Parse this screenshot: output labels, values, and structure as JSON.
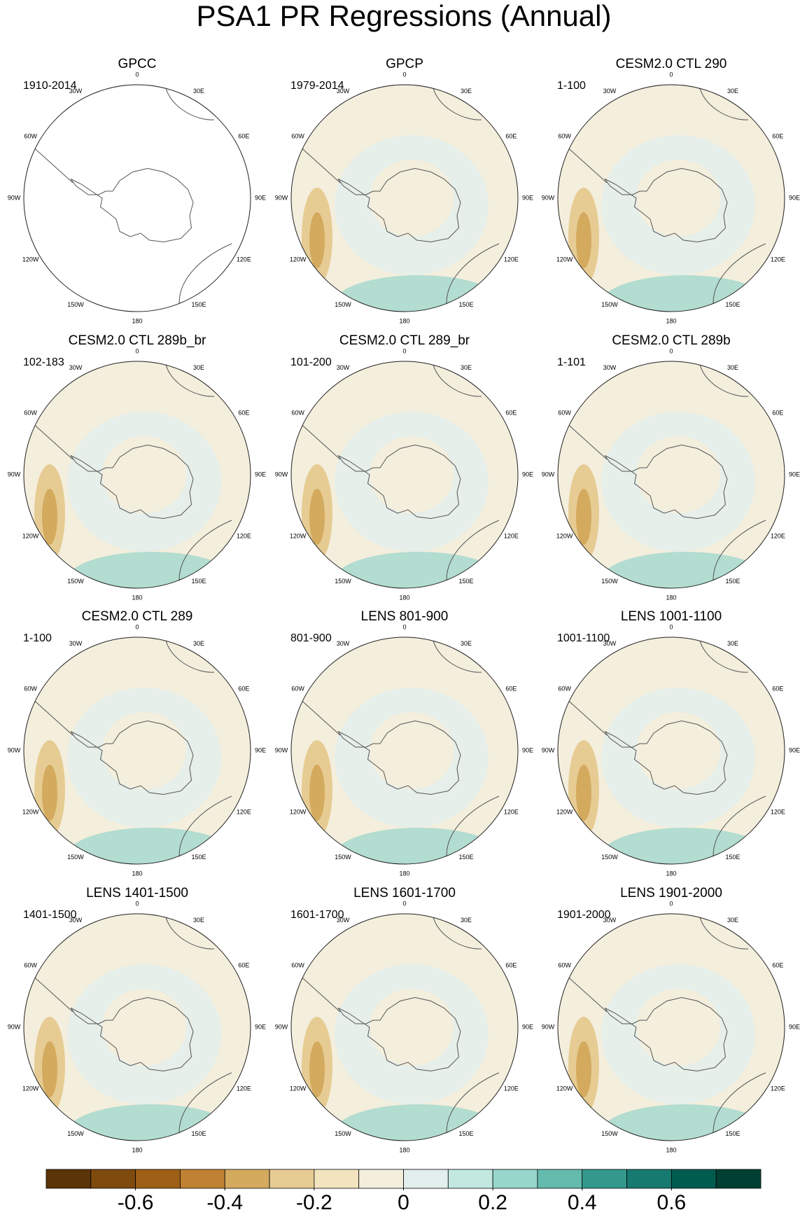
{
  "title": "PSA1 PR Regressions (Annual)",
  "panels": [
    {
      "title": "GPCC",
      "period": "1910-2014"
    },
    {
      "title": "GPCP",
      "period": "1979-2014"
    },
    {
      "title": "CESM2.0 CTL 290",
      "period": "1-100"
    },
    {
      "title": "CESM2.0 CTL 289b_br",
      "period": "102-183"
    },
    {
      "title": "CESM2.0 CTL 289_br",
      "period": "101-200"
    },
    {
      "title": "CESM2.0 CTL 289b",
      "period": "1-101"
    },
    {
      "title": "CESM2.0 CTL 289",
      "period": "1-100"
    },
    {
      "title": "LENS 801-900",
      "period": "801-900"
    },
    {
      "title": "LENS 1001-1100",
      "period": "1001-1100"
    },
    {
      "title": "LENS 1401-1500",
      "period": "1401-1500"
    },
    {
      "title": "LENS 1601-1700",
      "period": "1601-1700"
    },
    {
      "title": "LENS 1901-2000",
      "period": "1901-2000"
    }
  ],
  "longitude_labels": [
    "0",
    "30E",
    "60E",
    "90E",
    "120E",
    "150E",
    "180",
    "150W",
    "120W",
    "90W",
    "60W",
    "30W"
  ],
  "colorbar": {
    "colors": [
      "#5a3508",
      "#7f4a0e",
      "#9e5f16",
      "#bf8233",
      "#d4aa5e",
      "#e6cc93",
      "#f3e4c0",
      "#f4eedd",
      "#e2efec",
      "#c2e8e0",
      "#96d6cb",
      "#63baad",
      "#34998d",
      "#177a70",
      "#015c50",
      "#013f33"
    ],
    "lim": [
      -0.8,
      0.8
    ],
    "ticks": [
      -0.6,
      -0.4,
      -0.2,
      0,
      0.2,
      0.4,
      0.6
    ]
  }
}
